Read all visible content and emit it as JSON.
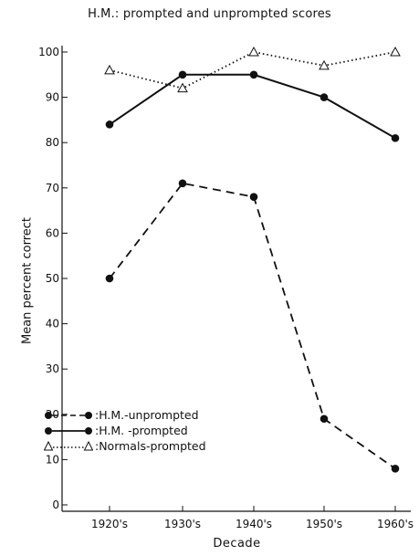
{
  "chart_data": {
    "type": "line",
    "title": "H.M.: prompted and unprompted scores",
    "xlabel": "Decade",
    "ylabel": "Mean percent correct",
    "categories": [
      "1920's",
      "1930's",
      "1940's",
      "1950's",
      "1960's"
    ],
    "ylim": [
      0,
      100
    ],
    "yticks": [
      0,
      10,
      20,
      30,
      40,
      50,
      60,
      70,
      80,
      90,
      100
    ],
    "series": [
      {
        "name": ":H.M.-unprompted",
        "style": "dashed",
        "marker": "filled-circle",
        "values": [
          50,
          71,
          68,
          19,
          8
        ]
      },
      {
        "name": ":H.M. -prompted",
        "style": "solid",
        "marker": "filled-circle",
        "values": [
          84,
          95,
          95,
          90,
          81
        ]
      },
      {
        "name": ":Normals-prompted",
        "style": "dotted",
        "marker": "open-triangle",
        "values": [
          96,
          92,
          100,
          97,
          100
        ]
      }
    ],
    "grid": false,
    "legend_position": "bottom-left"
  }
}
